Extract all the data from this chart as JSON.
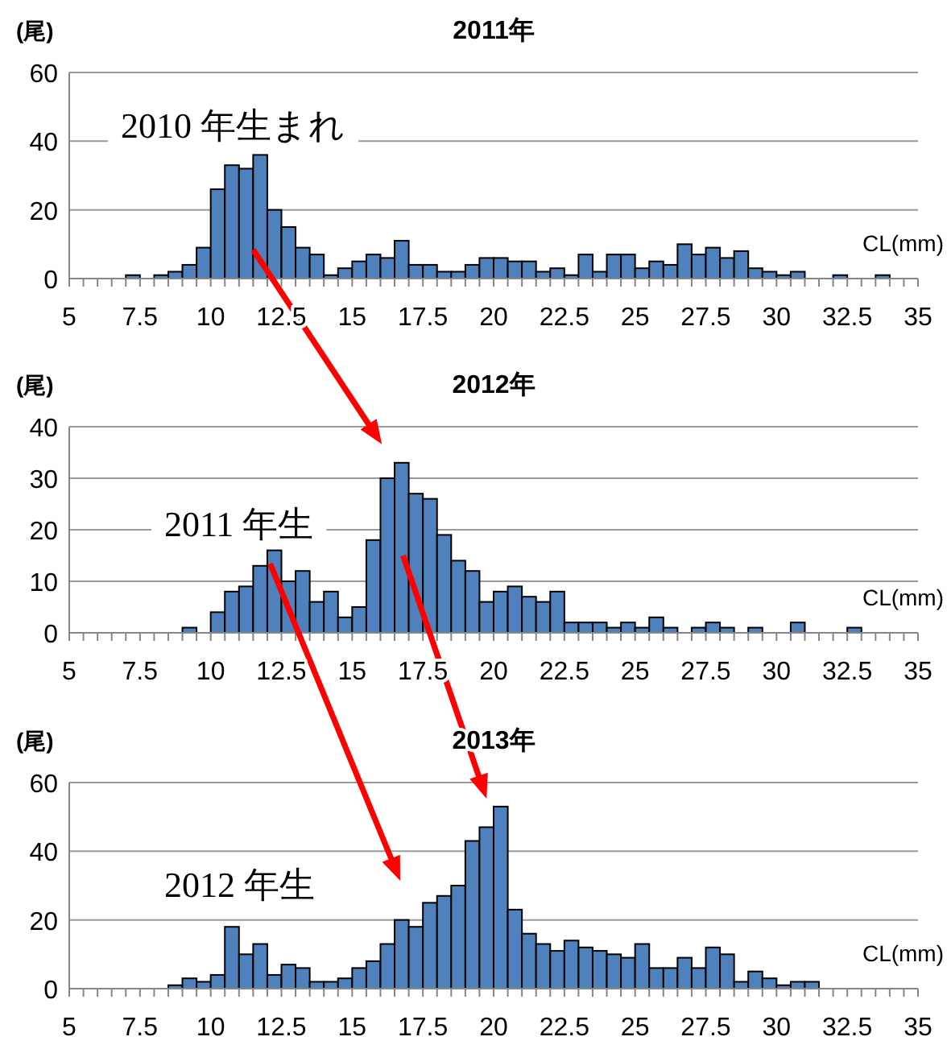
{
  "chart_data": [
    {
      "type": "histogram",
      "title": "2011年",
      "ylabel": "(尾)",
      "xlabel": "CL(mm)",
      "color": "#4f81bd",
      "grid": "y",
      "annotations": [
        "2010 年生まれ"
      ],
      "bins": [
        5,
        5.5,
        6,
        6.5,
        7,
        7.5,
        8,
        8.5,
        9,
        9.5,
        10,
        10.5,
        11,
        11.5,
        12,
        12.5,
        13,
        13.5,
        14,
        14.5,
        15,
        15.5,
        16,
        16.5,
        17,
        17.5,
        18,
        18.5,
        19,
        19.5,
        20,
        20.5,
        21,
        21.5,
        22,
        22.5,
        23,
        23.5,
        24,
        24.5,
        25,
        25.5,
        26,
        26.5,
        27,
        27.5,
        28,
        28.5,
        29,
        29.5,
        30,
        30.5,
        31,
        31.5,
        32,
        32.5,
        33,
        33.5,
        34,
        34.5,
        35
      ],
      "values": [
        0,
        0,
        0,
        0,
        1,
        0,
        1,
        2,
        4,
        9,
        26,
        33,
        32,
        36,
        20,
        15,
        9,
        7,
        1,
        3,
        5,
        7,
        6,
        11,
        4,
        4,
        2,
        2,
        4,
        6,
        6,
        5,
        5,
        2,
        3,
        1,
        7,
        2,
        7,
        7,
        3,
        5,
        4,
        10,
        7,
        9,
        6,
        8,
        3,
        2,
        1,
        2,
        0,
        0,
        1,
        0,
        0,
        1,
        0,
        0
      ],
      "xlim": [
        5,
        35
      ],
      "ylim": [
        0,
        60
      ],
      "yticks": [
        0,
        20,
        40,
        60
      ],
      "xticks": [
        5,
        {
          "value": 5.5,
          "label": null
        },
        {
          "value": 6,
          "label": null
        },
        {
          "value": 6.5,
          "label": null
        },
        {
          "value": 7,
          "label": null
        },
        7.5,
        {
          "value": 8,
          "label": null
        },
        {
          "value": 8.5,
          "label": null
        },
        {
          "value": 9,
          "label": null
        },
        {
          "value": 9.5,
          "label": null
        },
        10,
        {
          "value": 10.5,
          "label": null
        },
        {
          "value": 11,
          "label": null
        },
        {
          "value": 11.5,
          "label": null
        },
        {
          "value": 12,
          "label": null
        },
        12.5,
        {
          "value": 13,
          "label": null
        },
        {
          "value": 13.5,
          "label": null
        },
        {
          "value": 14,
          "label": null
        },
        {
          "value": 14.5,
          "label": null
        },
        15,
        {
          "value": 15.5,
          "label": null
        },
        {
          "value": 16,
          "label": null
        },
        {
          "value": 16.5,
          "label": null
        },
        {
          "value": 17,
          "label": null
        },
        17.5,
        {
          "value": 18,
          "label": null
        },
        {
          "value": 18.5,
          "label": null
        },
        {
          "value": 19,
          "label": null
        },
        {
          "value": 19.5,
          "label": null
        },
        20,
        {
          "value": 20.5,
          "label": null
        },
        {
          "value": 21,
          "label": null
        },
        {
          "value": 21.5,
          "label": null
        },
        {
          "value": 22,
          "label": null
        },
        22.5,
        {
          "value": 23,
          "label": null
        },
        {
          "value": 23.5,
          "label": null
        },
        {
          "value": 24,
          "label": null
        },
        {
          "value": 24.5,
          "label": null
        },
        25,
        {
          "value": 25.5,
          "label": null
        },
        {
          "value": 26,
          "label": null
        },
        {
          "value": 26.5,
          "label": null
        },
        {
          "value": 27,
          "label": null
        },
        27.5,
        {
          "value": 28,
          "label": null
        },
        {
          "value": 28.5,
          "label": null
        },
        {
          "value": 29,
          "label": null
        },
        {
          "value": 29.5,
          "label": null
        },
        30,
        {
          "value": 30.5,
          "label": null
        },
        {
          "value": 31,
          "label": null
        },
        {
          "value": 31.5,
          "label": null
        },
        {
          "value": 32,
          "label": null
        },
        32.5,
        {
          "value": 33,
          "label": null
        },
        {
          "value": 33.5,
          "label": null
        },
        {
          "value": 34,
          "label": null
        },
        {
          "value": 34.5,
          "label": null
        },
        35
      ]
    },
    {
      "type": "histogram",
      "title": "2012年",
      "ylabel": "(尾)",
      "xlabel": "CL(mm)",
      "color": "#4f81bd",
      "grid": "y",
      "annotations": [
        "2011 年生"
      ],
      "bins": [
        5,
        5.5,
        6,
        6.5,
        7,
        7.5,
        8,
        8.5,
        9,
        9.5,
        10,
        10.5,
        11,
        11.5,
        12,
        12.5,
        13,
        13.5,
        14,
        14.5,
        15,
        15.5,
        16,
        16.5,
        17,
        17.5,
        18,
        18.5,
        19,
        19.5,
        20,
        20.5,
        21,
        21.5,
        22,
        22.5,
        23,
        23.5,
        24,
        24.5,
        25,
        25.5,
        26,
        26.5,
        27,
        27.5,
        28,
        28.5,
        29,
        29.5,
        30,
        30.5,
        31,
        31.5,
        32,
        32.5,
        33,
        33.5,
        34,
        34.5,
        35
      ],
      "values": [
        0,
        0,
        0,
        0,
        0,
        0,
        0,
        0,
        1,
        0,
        4,
        8,
        9,
        13,
        16,
        10,
        12,
        6,
        8,
        3,
        5,
        18,
        30,
        33,
        27,
        26,
        19,
        14,
        12,
        6,
        8,
        9,
        7,
        6,
        8,
        2,
        2,
        2,
        1,
        2,
        1,
        3,
        1,
        0,
        1,
        2,
        1,
        0,
        1,
        0,
        0,
        2,
        0,
        0,
        0,
        1,
        0,
        0,
        0,
        0
      ],
      "xlim": [
        5,
        35
      ],
      "ylim": [
        0,
        40
      ],
      "yticks": [
        0,
        10,
        20,
        30,
        40
      ],
      "xticks": [
        5,
        {
          "value": 5.5,
          "label": null
        },
        {
          "value": 6,
          "label": null
        },
        {
          "value": 6.5,
          "label": null
        },
        {
          "value": 7,
          "label": null
        },
        7.5,
        {
          "value": 8,
          "label": null
        },
        {
          "value": 8.5,
          "label": null
        },
        {
          "value": 9,
          "label": null
        },
        {
          "value": 9.5,
          "label": null
        },
        10,
        {
          "value": 10.5,
          "label": null
        },
        {
          "value": 11,
          "label": null
        },
        {
          "value": 11.5,
          "label": null
        },
        {
          "value": 12,
          "label": null
        },
        12.5,
        {
          "value": 13,
          "label": null
        },
        {
          "value": 13.5,
          "label": null
        },
        {
          "value": 14,
          "label": null
        },
        {
          "value": 14.5,
          "label": null
        },
        15,
        {
          "value": 15.5,
          "label": null
        },
        {
          "value": 16,
          "label": null
        },
        {
          "value": 16.5,
          "label": null
        },
        {
          "value": 17,
          "label": null
        },
        17.5,
        {
          "value": 18,
          "label": null
        },
        {
          "value": 18.5,
          "label": null
        },
        {
          "value": 19,
          "label": null
        },
        {
          "value": 19.5,
          "label": null
        },
        20,
        {
          "value": 20.5,
          "label": null
        },
        {
          "value": 21,
          "label": null
        },
        {
          "value": 21.5,
          "label": null
        },
        {
          "value": 22,
          "label": null
        },
        22.5,
        {
          "value": 23,
          "label": null
        },
        {
          "value": 23.5,
          "label": null
        },
        {
          "value": 24,
          "label": null
        },
        {
          "value": 24.5,
          "label": null
        },
        25,
        {
          "value": 25.5,
          "label": null
        },
        {
          "value": 26,
          "label": null
        },
        {
          "value": 26.5,
          "label": null
        },
        {
          "value": 27,
          "label": null
        },
        27.5,
        {
          "value": 28,
          "label": null
        },
        {
          "value": 28.5,
          "label": null
        },
        {
          "value": 29,
          "label": null
        },
        {
          "value": 29.5,
          "label": null
        },
        30,
        {
          "value": 30.5,
          "label": null
        },
        {
          "value": 31,
          "label": null
        },
        {
          "value": 31.5,
          "label": null
        },
        {
          "value": 32,
          "label": null
        },
        32.5,
        {
          "value": 33,
          "label": null
        },
        {
          "value": 33.5,
          "label": null
        },
        {
          "value": 34,
          "label": null
        },
        {
          "value": 34.5,
          "label": null
        },
        35
      ]
    },
    {
      "type": "histogram",
      "title": "2013年",
      "ylabel": "(尾)",
      "xlabel": "CL(mm)",
      "color": "#4f81bd",
      "grid": "y",
      "annotations": [
        "2012 年生"
      ],
      "bins": [
        5,
        5.5,
        6,
        6.5,
        7,
        7.5,
        8,
        8.5,
        9,
        9.5,
        10,
        10.5,
        11,
        11.5,
        12,
        12.5,
        13,
        13.5,
        14,
        14.5,
        15,
        15.5,
        16,
        16.5,
        17,
        17.5,
        18,
        18.5,
        19,
        19.5,
        20,
        20.5,
        21,
        21.5,
        22,
        22.5,
        23,
        23.5,
        24,
        24.5,
        25,
        25.5,
        26,
        26.5,
        27,
        27.5,
        28,
        28.5,
        29,
        29.5,
        30,
        30.5,
        31,
        31.5,
        32,
        32.5,
        33,
        33.5,
        34,
        34.5,
        35
      ],
      "values": [
        0,
        0,
        0,
        0,
        0,
        0,
        0,
        1,
        3,
        2,
        4,
        18,
        10,
        13,
        4,
        7,
        6,
        2,
        2,
        3,
        6,
        8,
        13,
        20,
        18,
        25,
        27,
        30,
        43,
        47,
        53,
        23,
        16,
        13,
        11,
        14,
        12,
        11,
        10,
        9,
        13,
        6,
        6,
        9,
        6,
        12,
        10,
        2,
        5,
        3,
        1,
        2,
        2,
        0,
        0,
        0,
        0,
        0,
        0,
        0
      ],
      "xlim": [
        5,
        35
      ],
      "ylim": [
        0,
        60
      ],
      "yticks": [
        0,
        20,
        40,
        60
      ],
      "xticks": [
        5,
        {
          "value": 5.5,
          "label": null
        },
        {
          "value": 6,
          "label": null
        },
        {
          "value": 6.5,
          "label": null
        },
        {
          "value": 7,
          "label": null
        },
        7.5,
        {
          "value": 8,
          "label": null
        },
        {
          "value": 8.5,
          "label": null
        },
        {
          "value": 9,
          "label": null
        },
        {
          "value": 9.5,
          "label": null
        },
        10,
        {
          "value": 10.5,
          "label": null
        },
        {
          "value": 11,
          "label": null
        },
        {
          "value": 11.5,
          "label": null
        },
        {
          "value": 12,
          "label": null
        },
        12.5,
        {
          "value": 13,
          "label": null
        },
        {
          "value": 13.5,
          "label": null
        },
        {
          "value": 14,
          "label": null
        },
        {
          "value": 14.5,
          "label": null
        },
        15,
        {
          "value": 15.5,
          "label": null
        },
        {
          "value": 16,
          "label": null
        },
        {
          "value": 16.5,
          "label": null
        },
        {
          "value": 17,
          "label": null
        },
        17.5,
        {
          "value": 18,
          "label": null
        },
        {
          "value": 18.5,
          "label": null
        },
        {
          "value": 19,
          "label": null
        },
        {
          "value": 19.5,
          "label": null
        },
        20,
        {
          "value": 20.5,
          "label": null
        },
        {
          "value": 21,
          "label": null
        },
        {
          "value": 21.5,
          "label": null
        },
        {
          "value": 22,
          "label": null
        },
        22.5,
        {
          "value": 23,
          "label": null
        },
        {
          "value": 23.5,
          "label": null
        },
        {
          "value": 24,
          "label": null
        },
        {
          "value": 24.5,
          "label": null
        },
        25,
        {
          "value": 25.5,
          "label": null
        },
        {
          "value": 26,
          "label": null
        },
        {
          "value": 26.5,
          "label": null
        },
        {
          "value": 27,
          "label": null
        },
        27.5,
        {
          "value": 28,
          "label": null
        },
        {
          "value": 28.5,
          "label": null
        },
        {
          "value": 29,
          "label": null
        },
        {
          "value": 29.5,
          "label": null
        },
        30,
        {
          "value": 30.5,
          "label": null
        },
        {
          "value": 31,
          "label": null
        },
        {
          "value": 31.5,
          "label": null
        },
        {
          "value": 32,
          "label": null
        },
        32.5,
        {
          "value": 33,
          "label": null
        },
        {
          "value": 33.5,
          "label": null
        },
        {
          "value": 34,
          "label": null
        },
        {
          "value": 34.5,
          "label": null
        },
        35
      ]
    }
  ]
}
